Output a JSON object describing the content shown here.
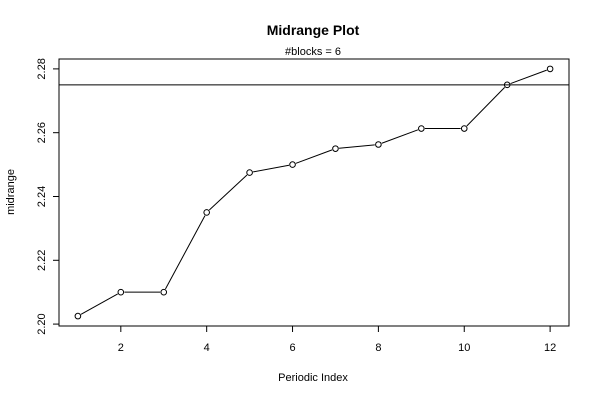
{
  "chart_data": {
    "type": "line",
    "title": "Midrange Plot",
    "subtitle": "#blocks =  6",
    "xlabel": "Periodic Index",
    "ylabel": "midrange",
    "x": [
      1,
      2,
      3,
      4,
      5,
      6,
      7,
      8,
      9,
      10,
      11,
      12
    ],
    "series": [
      {
        "values": [
          2.2025,
          2.21,
          2.21,
          2.235,
          2.2475,
          2.25,
          2.255,
          2.2563,
          2.2613,
          2.2613,
          2.275,
          2.28
        ]
      }
    ],
    "hline": 2.275,
    "xlim": [
      0.56,
      12.44
    ],
    "ylim": [
      2.1994,
      2.2831
    ],
    "x_ticks": [
      2,
      4,
      6,
      8,
      10,
      12
    ],
    "y_ticks": [
      2.2,
      2.22,
      2.24,
      2.26,
      2.28
    ],
    "x_tick_labels": [
      "2",
      "4",
      "6",
      "8",
      "10",
      "12"
    ],
    "y_tick_labels": [
      "2.20",
      "2.22",
      "2.24",
      "2.26",
      "2.28"
    ],
    "markers": "open-circle",
    "grid": false,
    "line_color": "#000000"
  }
}
